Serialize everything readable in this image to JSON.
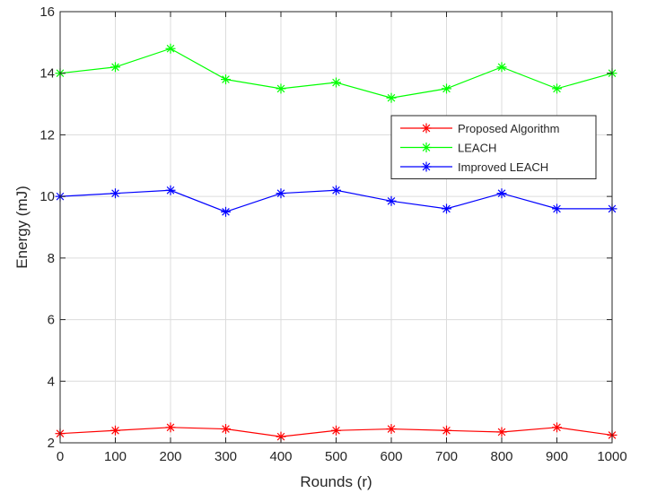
{
  "chart_data": {
    "type": "line",
    "title": "",
    "xlabel": "Rounds (r)",
    "ylabel": "Energy (mJ)",
    "xlim": [
      0,
      1000
    ],
    "ylim": [
      2,
      16
    ],
    "xticks": [
      0,
      100,
      200,
      300,
      400,
      500,
      600,
      700,
      800,
      900,
      1000
    ],
    "yticks": [
      2,
      4,
      6,
      8,
      10,
      12,
      14,
      16
    ],
    "grid": true,
    "legend_position": "right",
    "marker": "asterisk",
    "x": [
      0,
      100,
      200,
      300,
      400,
      500,
      600,
      700,
      800,
      900,
      1000
    ],
    "series": [
      {
        "name": "Proposed Algorithm",
        "color": "#ff0000",
        "values": [
          2.3,
          2.4,
          2.5,
          2.45,
          2.2,
          2.4,
          2.45,
          2.4,
          2.35,
          2.5,
          2.25
        ]
      },
      {
        "name": "LEACH",
        "color": "#00ff00",
        "values": [
          14.0,
          14.2,
          14.8,
          13.8,
          13.5,
          13.7,
          13.2,
          13.5,
          14.2,
          13.5,
          14.0
        ]
      },
      {
        "name": "Improved LEACH",
        "color": "#0000ff",
        "values": [
          10.0,
          10.1,
          10.2,
          9.5,
          10.1,
          10.2,
          9.85,
          9.6,
          10.1,
          9.6,
          9.6
        ]
      }
    ]
  }
}
